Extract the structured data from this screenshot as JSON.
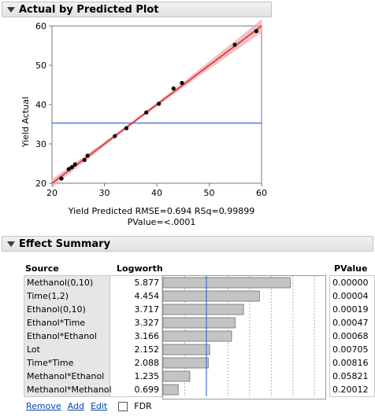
{
  "plot_section": {
    "title": "Actual by Predicted Plot"
  },
  "plot_caption": {
    "line1": "Yield Predicted RMSE=0.694 RSq=0.99899",
    "line2": "PValue=<.0001"
  },
  "chart_data": {
    "type": "scatter",
    "title": "",
    "xlabel": "Yield Predicted",
    "ylabel": "Yield Actual",
    "xlim": [
      20,
      60
    ],
    "ylim": [
      20,
      60
    ],
    "xticks": [
      20,
      30,
      40,
      50,
      60
    ],
    "yticks": [
      20,
      30,
      40,
      50,
      60
    ],
    "points": [
      [
        21.8,
        21.2
      ],
      [
        23.2,
        23.6
      ],
      [
        23.8,
        24.1
      ],
      [
        24.4,
        24.8
      ],
      [
        26.2,
        25.9
      ],
      [
        26.8,
        27.0
      ],
      [
        32.0,
        32.0
      ],
      [
        34.2,
        34.0
      ],
      [
        38.0,
        38.0
      ],
      [
        40.4,
        40.2
      ],
      [
        43.2,
        44.1
      ],
      [
        44.8,
        45.5
      ],
      [
        54.9,
        55.2
      ],
      [
        59.0,
        58.7
      ]
    ],
    "mean_line_y": 35.3,
    "fit_line": [
      [
        20,
        20
      ],
      [
        60,
        60
      ]
    ],
    "colors": {
      "fit": "#d9282f",
      "band": "#f2a9ad",
      "mean": "#4a7fe0",
      "points": "#000000"
    }
  },
  "effect_section": {
    "title": "Effect Summary"
  },
  "effect_table": {
    "headers": {
      "source": "Source",
      "logworth": "Logworth",
      "pvalue": "PValue"
    },
    "rows": [
      {
        "source": "Methanol(0,10)",
        "logworth": "5.877",
        "pvalue": "0.00000",
        "value": 5.877
      },
      {
        "source": "Time(1,2)",
        "logworth": "4.454",
        "pvalue": "0.00004",
        "value": 4.454
      },
      {
        "source": "Ethanol(0,10)",
        "logworth": "3.717",
        "pvalue": "0.00019",
        "value": 3.717
      },
      {
        "source": "Ethanol*Time",
        "logworth": "3.327",
        "pvalue": "0.00047",
        "value": 3.327
      },
      {
        "source": "Ethanol*Ethanol",
        "logworth": "3.166",
        "pvalue": "0.00068",
        "value": 3.166
      },
      {
        "source": "Lot",
        "logworth": "2.152",
        "pvalue": "0.00705",
        "value": 2.152
      },
      {
        "source": "Time*Time",
        "logworth": "2.088",
        "pvalue": "0.00816",
        "value": 2.088
      },
      {
        "source": "Methanol*Ethanol",
        "logworth": "1.235",
        "pvalue": "0.05821",
        "value": 1.235
      },
      {
        "source": "Methanol*Methanol",
        "logworth": "0.699",
        "pvalue": "0.20012",
        "value": 0.699
      }
    ],
    "bar_max": 7.5,
    "reference_line": 2.0
  },
  "footer": {
    "remove": "Remove",
    "add": "Add",
    "edit": "Edit",
    "fdr": "FDR"
  }
}
